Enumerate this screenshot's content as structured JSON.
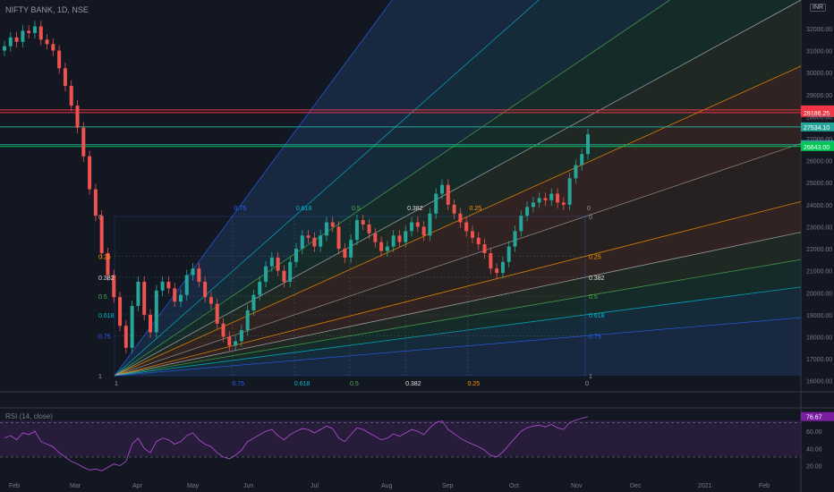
{
  "header": {
    "symbol_title": "NIFTY BANK, 1D, NSE",
    "currency": "INR"
  },
  "rsi": {
    "title": "RSI (14, close)",
    "value_label": "76.67"
  },
  "colors": {
    "background": "#131722",
    "up": "#26a69a",
    "down": "#ef5350",
    "rsi_line": "#b54fd8",
    "rsi_band": "#2a1d3d"
  },
  "chart_data": [
    {
      "type": "candlestick",
      "title": "NIFTY BANK, 1D, NSE",
      "y_axis": {
        "ticks": [
          16000,
          17000,
          18000,
          19000,
          20000,
          21000,
          22000,
          23000,
          24000,
          25000,
          26000,
          27000,
          28000,
          29000,
          30000,
          31000,
          32000
        ],
        "range": [
          15500,
          33300
        ]
      },
      "x_axis": {
        "ticks": [
          "Feb",
          "Mar",
          "Apr",
          "May",
          "Jun",
          "Jul",
          "Aug",
          "Sep",
          "Oct",
          "Nov",
          "Dec",
          "2021",
          "Feb"
        ]
      },
      "price_lines": [
        {
          "value": 28305.4,
          "label": "28305.40",
          "color": "#f23645"
        },
        {
          "value": 28186.25,
          "label": "28186.25",
          "color": "#f23645"
        },
        {
          "value": 27534.1,
          "label": "27534.10",
          "color": "#26a69a"
        },
        {
          "value": 26727.55,
          "label": "26727.55",
          "color": "#26a69a"
        },
        {
          "value": 26643.0,
          "label": "26643.00",
          "color": "#00c853"
        }
      ],
      "fib_levels_top": [
        "0.75",
        "0.618",
        "0.5",
        "0.382",
        "0.25",
        "0"
      ],
      "fib_levels_left": [
        "0",
        "0.25",
        "0.382",
        "0.5",
        "0.618",
        "0.75",
        "1"
      ],
      "fib_levels_right": [
        "0",
        "0.25",
        "0.382",
        "0.5",
        "0.618",
        "0.75",
        "1"
      ],
      "fib_levels_bottom": [
        "1",
        "0.75",
        "0.618",
        "0.5",
        "0.382",
        "0.25",
        "0"
      ],
      "series": [
        {
          "values": [
            31200,
            31600,
            31400,
            31900,
            31800,
            32100,
            31500,
            31300,
            31000,
            30200,
            29400,
            28500,
            27500,
            26200,
            24700,
            23500,
            21800,
            20800,
            19800,
            18500,
            17500,
            19400,
            20500,
            19000,
            18200,
            20100,
            20500,
            20200,
            19600,
            19900,
            20800,
            21100,
            20500,
            19800,
            19500,
            18600,
            18000,
            17600,
            17800,
            18300,
            19200,
            19900,
            20500,
            21200,
            21600,
            21000,
            20500,
            21400,
            22000,
            22600,
            22500,
            22100,
            22600,
            23200,
            23000,
            22000,
            21600,
            22400,
            23300,
            23100,
            22700,
            22300,
            21900,
            22100,
            22600,
            22300,
            22800,
            23200,
            23000,
            22600,
            23600,
            24500,
            24900,
            24000,
            23600,
            23200,
            22800,
            22500,
            22200,
            21800,
            21100,
            20900,
            21400,
            22100,
            22800,
            23500,
            23900,
            24100,
            24300,
            24200,
            24500,
            24100,
            24000,
            25200,
            25800,
            26300,
            27200
          ]
        }
      ]
    },
    {
      "type": "line",
      "title": "RSI (14, close)",
      "y_axis": {
        "ticks": [
          20,
          40,
          60
        ],
        "bands": [
          30,
          70
        ]
      },
      "series": [
        {
          "name": "RSI (14, close)",
          "values": [
            52,
            55,
            50,
            58,
            56,
            60,
            48,
            45,
            42,
            35,
            30,
            25,
            22,
            18,
            15,
            16,
            14,
            18,
            22,
            20,
            25,
            45,
            52,
            40,
            35,
            48,
            52,
            50,
            45,
            48,
            55,
            58,
            50,
            45,
            42,
            35,
            30,
            28,
            32,
            38,
            48,
            52,
            56,
            60,
            62,
            55,
            50,
            56,
            60,
            63,
            62,
            58,
            62,
            66,
            63,
            52,
            48,
            56,
            64,
            62,
            58,
            54,
            50,
            52,
            57,
            54,
            58,
            62,
            60,
            56,
            64,
            70,
            72,
            62,
            57,
            52,
            48,
            45,
            42,
            38,
            32,
            30,
            36,
            44,
            52,
            60,
            64,
            66,
            67,
            65,
            68,
            64,
            62,
            70,
            73,
            75,
            77
          ]
        }
      ]
    }
  ]
}
